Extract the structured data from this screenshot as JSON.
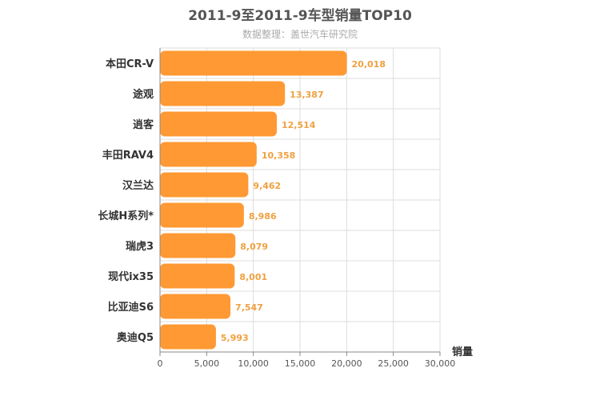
{
  "chart_data": {
    "type": "bar",
    "orientation": "horizontal",
    "title": "2011-9至2011-9车型销量TOP10",
    "subtitle": "数据整理：盖世汽车研究院",
    "xlabel": "销量",
    "categories": [
      "本田CR-V",
      "途观",
      "逍客",
      "丰田RAV4",
      "汉兰达",
      "长城H系列*",
      "瑞虎3",
      "现代ix35",
      "比亚迪S6",
      "奥迪Q5"
    ],
    "values": [
      20018,
      13387,
      12514,
      10358,
      9462,
      8986,
      8079,
      8001,
      7547,
      5993
    ],
    "value_labels": [
      "20,018",
      "13,387",
      "12,514",
      "10,358",
      "9,462",
      "8,986",
      "8,079",
      "8,001",
      "7,547",
      "5,993"
    ],
    "xlim": [
      0,
      30000
    ],
    "xticks": [
      0,
      5000,
      10000,
      15000,
      20000,
      25000,
      30000
    ],
    "xtick_labels": [
      "0",
      "5,000",
      "10,000",
      "15,000",
      "20,000",
      "25,000",
      "30,000"
    ],
    "grid": true,
    "bar_color": "#ff9933",
    "label_color": "#f0a040"
  }
}
